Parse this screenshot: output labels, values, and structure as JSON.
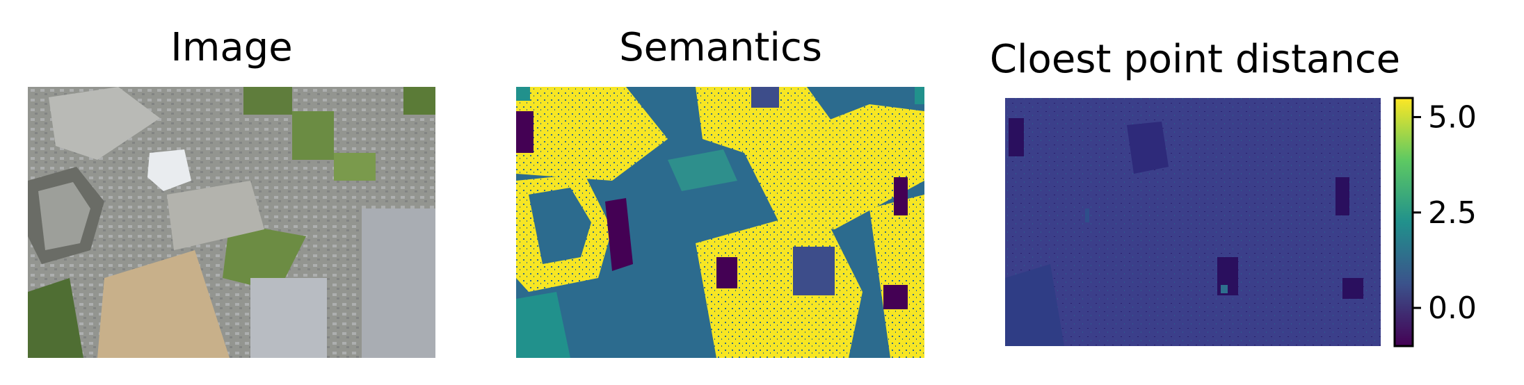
{
  "figure": {
    "panels": [
      {
        "title": "Image",
        "content": "aerial-photo"
      },
      {
        "title": "Semantics",
        "content": "semantic-map"
      },
      {
        "title": "Cloest point distance",
        "content": "distance-map"
      }
    ],
    "colorbar": {
      "colormap": "viridis",
      "range": [
        -1.0,
        5.5
      ],
      "ticks": [
        {
          "value": 5.0,
          "label": "5.0"
        },
        {
          "value": 2.5,
          "label": "2.5"
        },
        {
          "value": 0.0,
          "label": "0.0"
        }
      ]
    },
    "colors": {
      "viridis_low": "#440154",
      "viridis_mid_low": "#3b528b",
      "viridis_mid": "#21918c",
      "viridis_mid_high": "#5ec962",
      "viridis_high": "#fde725"
    }
  }
}
